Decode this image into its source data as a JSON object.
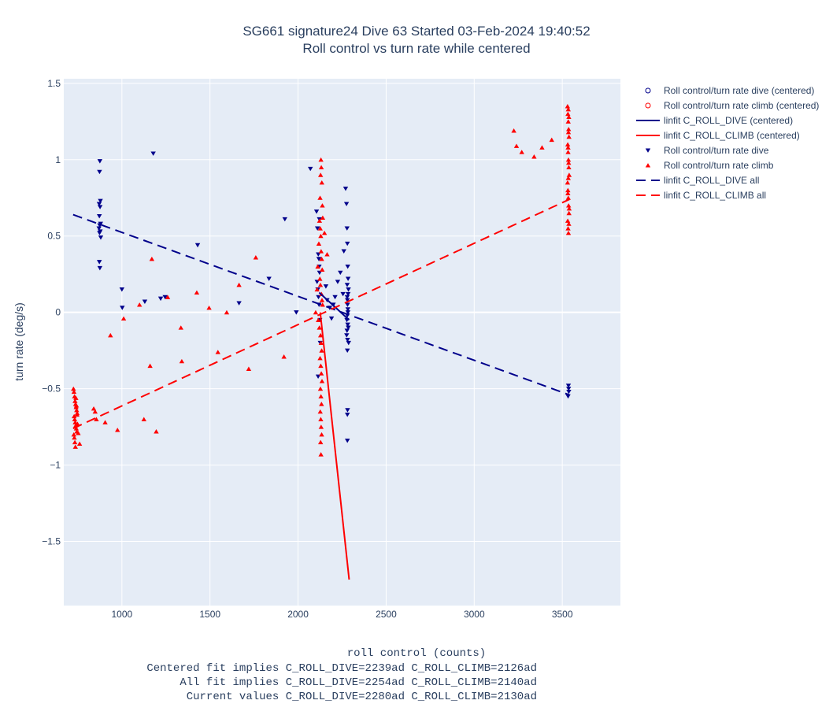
{
  "chart_data": {
    "type": "scatter",
    "title": "SG661 signature24 Dive 63 Started 03-Feb-2024 19:40:52",
    "subtitle": "Roll control vs turn rate while centered",
    "xlabel": "roll control (counts)",
    "xlabel_lines": [
      "Centered fit implies C_ROLL_DIVE=2239ad C_ROLL_CLIMB=2126ad",
      "All fit implies C_ROLL_DIVE=2254ad C_ROLL_CLIMB=2140ad",
      "Current values C_ROLL_DIVE=2280ad C_ROLL_CLIMB=2130ad"
    ],
    "ylabel": "turn rate (deg/s)",
    "xlim": [
      670,
      3830
    ],
    "ylim": [
      -1.92,
      1.53
    ],
    "x_ticks": [
      1000,
      1500,
      2000,
      2500,
      3000,
      3500
    ],
    "x_tick_labels": [
      "1000",
      "1500",
      "2000",
      "2500",
      "3000",
      "3500"
    ],
    "y_ticks": [
      -1.5,
      -1,
      -0.5,
      0,
      0.5,
      1,
      1.5
    ],
    "y_tick_labels": [
      "−1.5",
      "−1",
      "−0.5",
      "0",
      "0.5",
      "1",
      "1.5"
    ],
    "grid": true,
    "background": "#e5ecf6",
    "colors": {
      "dive": "#00008b",
      "climb": "#ff0000",
      "text": "#2a3f5f"
    },
    "legend_position": "top-right, outside plot",
    "series": [
      {
        "name": "Roll control/turn rate dive (centered)",
        "kind": "marker-open-circle",
        "color": "#00008b",
        "x": [],
        "y": []
      },
      {
        "name": "Roll control/turn rate climb (centered)",
        "kind": "marker-open-circle",
        "color": "#ff0000",
        "x": [],
        "y": []
      },
      {
        "name": "linfit C_ROLL_DIVE (centered)",
        "kind": "line-solid",
        "color": "#00008b",
        "x": [
          2120,
          2290
        ],
        "y": [
          0.13,
          -0.05
        ]
      },
      {
        "name": "linfit C_ROLL_CLIMB (centered)",
        "kind": "line-solid",
        "color": "#ff0000",
        "x": [
          2126,
          2290
        ],
        "y": [
          0.0,
          -1.75
        ]
      },
      {
        "name": "Roll control/turn rate dive",
        "kind": "marker-triangle-down",
        "color": "#00008b",
        "x": [
          875,
          873,
          878,
          871,
          876,
          872,
          879,
          874,
          870,
          877,
          873,
          880,
          872,
          875,
          1178,
          1000,
          1002,
          1130,
          1220,
          1245,
          1430,
          1665,
          1835,
          1925,
          1990,
          2070,
          2105,
          2110,
          2115,
          2118,
          2120,
          2122,
          2108,
          2112,
          2116,
          2119,
          2124,
          2126,
          2114,
          2121,
          2158,
          2165,
          2180,
          2190,
          2200,
          2210,
          2225,
          2240,
          2255,
          2260,
          2270,
          2275,
          2278,
          2280,
          2282,
          2284,
          2286,
          2279,
          2281,
          2283,
          2277,
          2285,
          2276,
          2287,
          2280,
          2281,
          2278,
          2282,
          2280,
          2284,
          2279,
          2283,
          2280,
          2281,
          2280,
          2280,
          3535,
          3537,
          3533,
          3536
        ],
        "y": [
          0.99,
          0.92,
          0.73,
          0.71,
          0.69,
          0.63,
          0.58,
          0.57,
          0.55,
          0.53,
          0.52,
          0.49,
          0.33,
          0.29,
          1.04,
          0.15,
          0.03,
          0.07,
          0.09,
          0.1,
          0.44,
          0.06,
          0.22,
          0.61,
          0.0,
          0.94,
          0.66,
          0.55,
          0.38,
          0.35,
          0.3,
          0.26,
          0.2,
          0.15,
          0.1,
          0.05,
          -0.05,
          -0.2,
          -0.42,
          0.61,
          0.17,
          0.08,
          0.03,
          -0.04,
          0.05,
          0.1,
          0.2,
          0.26,
          0.12,
          0.4,
          0.81,
          0.71,
          0.55,
          0.45,
          0.3,
          0.22,
          0.15,
          0.1,
          0.05,
          0.0,
          -0.05,
          -0.1,
          -0.15,
          -0.2,
          -0.25,
          -0.18,
          -0.12,
          -0.08,
          0.08,
          0.12,
          0.18,
          0.02,
          -0.02,
          -0.64,
          -0.67,
          -0.84,
          -0.48,
          -0.52,
          -0.55,
          -0.5
        ]
      },
      {
        "name": "Roll control/turn rate climb",
        "kind": "marker-triangle-up",
        "color": "#ff0000",
        "x": [
          725,
          728,
          731,
          734,
          737,
          740,
          743,
          746,
          729,
          732,
          735,
          738,
          741,
          744,
          727,
          730,
          733,
          736,
          739,
          742,
          745,
          748,
          752,
          760,
          840,
          848,
          855,
          905,
          935,
          975,
          1010,
          1100,
          1125,
          1160,
          1170,
          1195,
          1260,
          1335,
          1340,
          1425,
          1495,
          1545,
          1595,
          1665,
          1720,
          1760,
          1920,
          2100,
          2108,
          2112,
          2118,
          2122,
          2125,
          2128,
          2130,
          2132,
          2135,
          2138,
          2140,
          2126,
          2129,
          2131,
          2134,
          2137,
          2124,
          2127,
          2133,
          2136,
          2139,
          2115,
          2121,
          2128,
          2131,
          2134,
          2125,
          2129,
          2132,
          2136,
          2127,
          2130,
          2133,
          2126,
          2129,
          2131,
          2134,
          2128,
          2130,
          2150,
          2165,
          3225,
          3240,
          3270,
          3340,
          3385,
          3440,
          3530,
          3532,
          3534,
          3536,
          3538,
          3531,
          3533,
          3535,
          3537,
          3539,
          3530,
          3532,
          3534,
          3536,
          3538,
          3531,
          3533,
          3535,
          3537,
          3539,
          3532,
          3534,
          3536,
          3533,
          3535,
          3537,
          3534
        ],
        "y": [
          -0.5,
          -0.52,
          -0.55,
          -0.58,
          -0.6,
          -0.62,
          -0.64,
          -0.66,
          -0.68,
          -0.7,
          -0.72,
          -0.74,
          -0.76,
          -0.78,
          -0.8,
          -0.82,
          -0.85,
          -0.88,
          -0.56,
          -0.61,
          -0.67,
          -0.73,
          -0.79,
          -0.86,
          -0.63,
          -0.65,
          -0.7,
          -0.72,
          -0.15,
          -0.77,
          -0.04,
          0.05,
          -0.7,
          -0.35,
          0.35,
          -0.78,
          0.1,
          -0.1,
          -0.32,
          0.13,
          0.03,
          -0.26,
          0.0,
          0.18,
          -0.37,
          0.36,
          -0.29,
          0.0,
          0.15,
          0.3,
          0.45,
          0.6,
          0.75,
          0.9,
          1.0,
          0.95,
          0.85,
          0.7,
          0.62,
          0.55,
          0.5,
          0.4,
          0.35,
          0.28,
          0.22,
          0.18,
          0.12,
          0.08,
          0.05,
          -0.05,
          -0.1,
          -0.15,
          -0.2,
          -0.25,
          -0.3,
          -0.35,
          -0.4,
          -0.45,
          -0.5,
          -0.55,
          -0.6,
          -0.65,
          -0.7,
          -0.75,
          -0.8,
          -0.85,
          -0.93,
          0.52,
          0.38,
          1.19,
          1.09,
          1.05,
          1.02,
          1.08,
          1.13,
          1.35,
          1.3,
          1.25,
          1.2,
          1.15,
          1.1,
          1.05,
          1.0,
          0.95,
          0.9,
          0.85,
          0.8,
          0.75,
          0.7,
          0.65,
          0.6,
          0.55,
          0.52,
          0.58,
          0.68,
          0.78,
          0.88,
          0.98,
          1.08,
          1.18,
          1.28,
          1.33
        ]
      },
      {
        "name": "linfit C_ROLL_DIVE all",
        "kind": "line-dash",
        "color": "#00008b",
        "x": [
          723,
          3540
        ],
        "y": [
          0.64,
          -0.54
        ]
      },
      {
        "name": "linfit C_ROLL_CLIMB all",
        "kind": "line-dash",
        "color": "#ff0000",
        "x": [
          723,
          3540
        ],
        "y": [
          -0.76,
          0.74
        ]
      }
    ]
  }
}
